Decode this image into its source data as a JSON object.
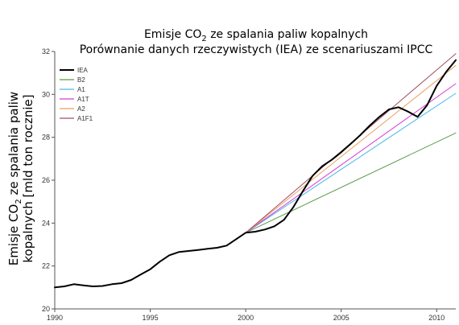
{
  "chart_data": {
    "type": "line",
    "title_line1_pre": "Emisje CO",
    "title_line1_sub": "2",
    "title_line1_post": " ze spalania paliw kopalnych",
    "title_line2": "Porównanie danych rzeczywistych (IEA) ze scenariuszami IPCC",
    "ylabel_line1_pre": "Emisje CO",
    "ylabel_line1_sub": "2",
    "ylabel_line1_post": " ze spalania paliw",
    "ylabel_line2": "kopalnych [mld ton rocznie]",
    "xlabel": "",
    "xlim": [
      1990,
      2011
    ],
    "ylim": [
      20,
      32
    ],
    "xticks": [
      "1990",
      "1995",
      "2000",
      "2005",
      "2010"
    ],
    "yticks": [
      "20",
      "22",
      "24",
      "26",
      "28",
      "30",
      "32"
    ],
    "legend_position": "top-left",
    "series": [
      {
        "name": "IEA",
        "color": "#000000",
        "width": 2,
        "x": [
          1990,
          1990.5,
          1991,
          1991.5,
          1992,
          1992.5,
          1993,
          1993.5,
          1994,
          1994.5,
          1995,
          1995.5,
          1996,
          1996.5,
          1997,
          1997.5,
          1998,
          1998.5,
          1999,
          1999.5,
          2000,
          2000.5,
          2001,
          2001.5,
          2002,
          2002.5,
          2003,
          2003.5,
          2004,
          2004.5,
          2005,
          2005.5,
          2006,
          2006.5,
          2007,
          2007.5,
          2008,
          2008.5,
          2009,
          2009.5,
          2010,
          2010.5,
          2011
        ],
        "y": [
          21.0,
          21.05,
          21.15,
          21.1,
          21.05,
          21.07,
          21.15,
          21.2,
          21.35,
          21.6,
          21.85,
          22.2,
          22.5,
          22.65,
          22.7,
          22.75,
          22.8,
          22.85,
          22.95,
          23.25,
          23.55,
          23.6,
          23.7,
          23.85,
          24.15,
          24.75,
          25.5,
          26.2,
          26.65,
          26.95,
          27.3,
          27.7,
          28.1,
          28.55,
          28.95,
          29.3,
          29.4,
          29.2,
          28.95,
          29.5,
          30.4,
          31.05,
          31.6
        ]
      },
      {
        "name": "B2",
        "color": "#5a9a4a",
        "width": 1,
        "x": [
          2000,
          2011
        ],
        "y": [
          23.55,
          28.2
        ]
      },
      {
        "name": "A1",
        "color": "#4db8e8",
        "width": 1,
        "x": [
          2000,
          2011
        ],
        "y": [
          23.55,
          30.05
        ]
      },
      {
        "name": "A1T",
        "color": "#d63bd6",
        "width": 1,
        "x": [
          2000,
          2011
        ],
        "y": [
          23.55,
          30.5
        ]
      },
      {
        "name": "A2",
        "color": "#e8a060",
        "width": 1,
        "x": [
          2000,
          2011
        ],
        "y": [
          23.55,
          31.35
        ]
      },
      {
        "name": "A1F1",
        "color": "#a05060",
        "width": 1,
        "x": [
          2000,
          2011
        ],
        "y": [
          23.55,
          31.9
        ]
      }
    ]
  }
}
